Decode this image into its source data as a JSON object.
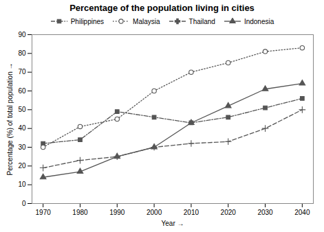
{
  "chart_data": {
    "type": "line",
    "title": "Percentage of the population living in cities",
    "xlabel": "Year",
    "ylabel": "Percentage (%) of total population",
    "x": [
      1970,
      1980,
      1990,
      2000,
      2010,
      2020,
      2030,
      2040
    ],
    "xlim": [
      1967,
      2043
    ],
    "xticks": [
      1970,
      1980,
      1990,
      2000,
      2010,
      2020,
      2030,
      2040
    ],
    "ylim": [
      0,
      90
    ],
    "yticks": [
      0,
      10,
      20,
      30,
      40,
      50,
      60,
      70,
      80,
      90
    ],
    "grid": false,
    "legend": "top",
    "series": [
      {
        "name": "Philippines",
        "color": "#555555",
        "marker": "square",
        "line_style": "dashdot",
        "values": [
          32,
          34,
          49,
          46,
          43,
          46,
          51,
          56
        ]
      },
      {
        "name": "Malaysia",
        "color": "#555555",
        "marker": "circle",
        "line_style": "dotted",
        "values": [
          30,
          41,
          45,
          60,
          70,
          75,
          81,
          83
        ]
      },
      {
        "name": "Thailand",
        "color": "#555555",
        "marker": "plus",
        "line_style": "dashed",
        "values": [
          19,
          23,
          25,
          30,
          32,
          33,
          40,
          50
        ]
      },
      {
        "name": "Indonesia",
        "color": "#555555",
        "marker": "triangle",
        "line_style": "solid",
        "values": [
          14,
          17,
          25,
          30,
          43,
          52,
          61,
          64
        ]
      }
    ]
  }
}
